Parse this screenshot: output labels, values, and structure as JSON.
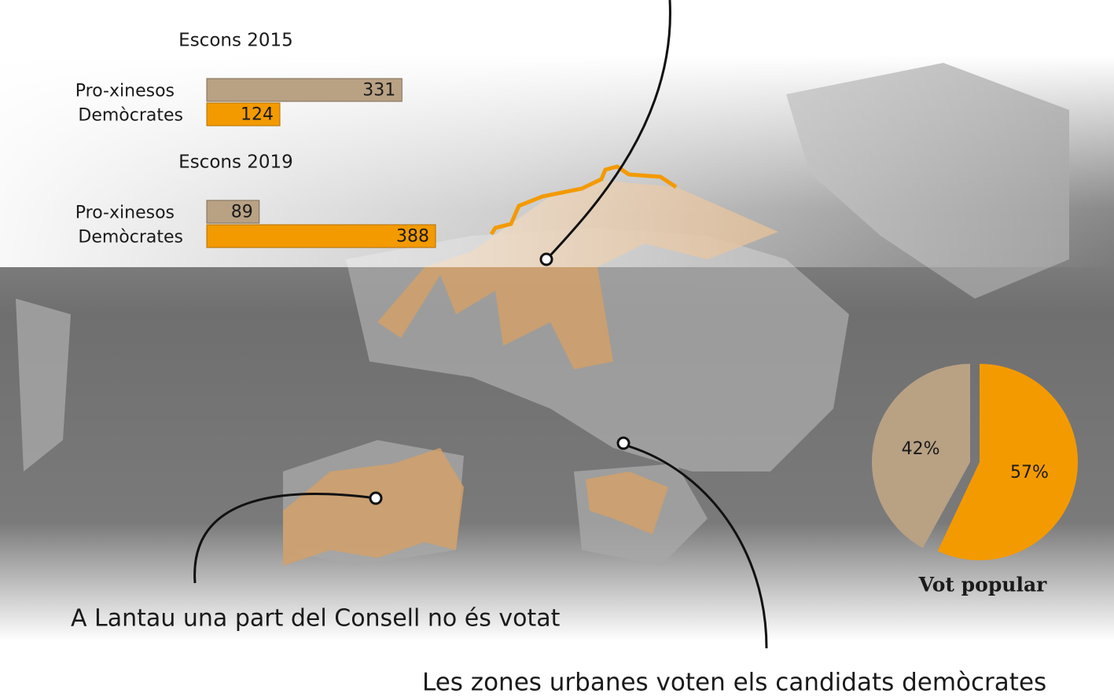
{
  "chart_data": [
    {
      "type": "bar",
      "title": "Escons 2015",
      "categories": [
        "Pro-xinesos",
        "Demòcrates"
      ],
      "values": [
        331,
        124
      ],
      "colors": [
        "#b9a184",
        "#f39a00"
      ]
    },
    {
      "type": "bar",
      "title": "Escons 2019",
      "categories": [
        "Pro-xinesos",
        "Demòcrates"
      ],
      "values": [
        89,
        388
      ],
      "colors": [
        "#b9a184",
        "#f39a00"
      ]
    },
    {
      "type": "pie",
      "title": "Vot popular",
      "values": [
        42,
        57
      ],
      "value_labels": [
        "42%",
        "57%"
      ],
      "colors": [
        "#b9a184",
        "#f39a00"
      ]
    }
  ],
  "annotations": [
    "A Lantau una part del Consell no és votat",
    "Les zones urbanes voten els candidats demòcrates"
  ]
}
